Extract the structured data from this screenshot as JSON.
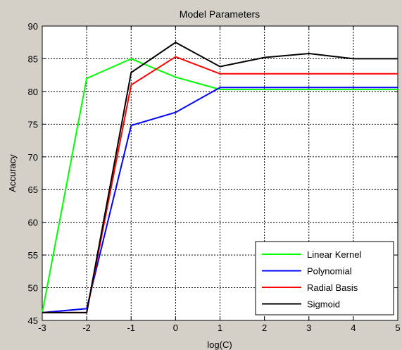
{
  "chart_data": {
    "type": "line",
    "title": "Model Parameters",
    "xlabel": "log(C)",
    "ylabel": "Accuracy",
    "xlim": [
      -3,
      5
    ],
    "ylim": [
      45,
      90
    ],
    "xticks": [
      -3,
      -2,
      -1,
      0,
      1,
      2,
      3,
      4,
      5
    ],
    "yticks": [
      45,
      50,
      55,
      60,
      65,
      70,
      75,
      80,
      85,
      90
    ],
    "grid": true,
    "legend_position": "bottom-right",
    "series": [
      {
        "name": "Linear Kernel",
        "color": "#00ff00",
        "x": [
          -3,
          -2,
          -1,
          0,
          1,
          2,
          3,
          4,
          5
        ],
        "y": [
          46.2,
          82.0,
          85.0,
          82.2,
          80.3,
          80.3,
          80.3,
          80.3,
          80.3
        ]
      },
      {
        "name": "Polynomial",
        "color": "#0000ff",
        "x": [
          -3,
          -2,
          -1,
          0,
          1,
          2,
          3,
          4,
          5
        ],
        "y": [
          46.2,
          46.8,
          74.8,
          76.8,
          80.6,
          80.6,
          80.6,
          80.6,
          80.6
        ]
      },
      {
        "name": "Radial Basis",
        "color": "#ff0000",
        "x": [
          -3,
          -2,
          -1,
          0,
          1,
          2,
          3,
          4,
          5
        ],
        "y": [
          46.2,
          46.2,
          81.0,
          85.3,
          82.7,
          82.7,
          82.7,
          82.7,
          82.7
        ]
      },
      {
        "name": "Sigmoid",
        "color": "#000000",
        "x": [
          -3,
          -2,
          -1,
          0,
          1,
          2,
          3,
          4,
          5
        ],
        "y": [
          46.2,
          46.2,
          82.9,
          87.5,
          83.8,
          85.2,
          85.8,
          85.0,
          85.0
        ]
      }
    ]
  }
}
